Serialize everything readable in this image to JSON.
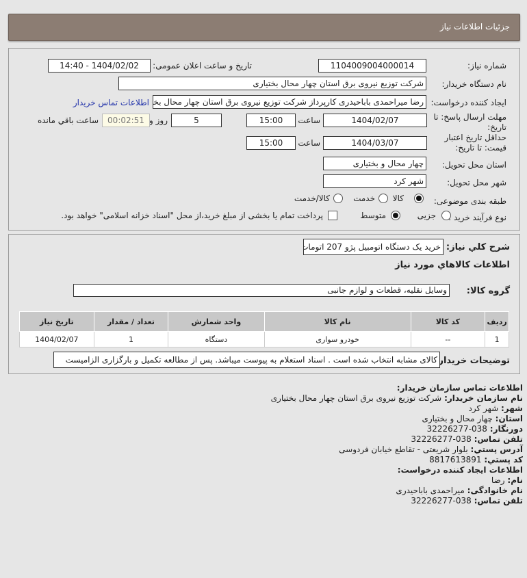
{
  "header": {
    "title": "جزئیات اطلاعات نیاز"
  },
  "form": {
    "need_number_label": "شماره نیاز:",
    "need_number": "1104009004000014",
    "announce_label": "تاریخ و ساعت اعلان عمومی:",
    "announce_value": "1404/02/02 - 14:40",
    "buyer_org_label": "نام دستگاه خریدار:",
    "buyer_org": "شرکت توزیع نیروی برق استان چهار محال بختیاری",
    "creator_label": "ایجاد کننده درخواست:",
    "creator": "رضا میراحمدی باباحیدری کارپرداز شرکت توزیع نیروی برق استان چهار محال بختیاری",
    "contact_link": "اطلاعات تماس خریدار",
    "deadline_label": "مهلت ارسال پاسخ: تا تاریخ:",
    "deadline_date": "1404/02/07",
    "time_label": "ساعت",
    "deadline_time": "15:00",
    "days": "5",
    "days_label": "روز و",
    "remaining": "00:02:51",
    "remaining_label": "ساعت باقي مانده",
    "validity_label": "حداقل تاریخ اعتبار قیمت: تا تاریخ:",
    "validity_date": "1404/03/07",
    "validity_time": "15:00",
    "province_label": "استان محل تحویل:",
    "province": "چهار محال و بختیاری",
    "city_label": "شهر محل تحویل:",
    "city": "شهر کرد",
    "category_label": "طبقه بندی موضوعی:",
    "category_options": [
      "کالا",
      "خدمت",
      "کالا/خدمت"
    ],
    "category_selected": "کالا",
    "process_label": "نوع فرآیند خرید :",
    "process_options": [
      "جزیی",
      "متوسط"
    ],
    "process_selected": "متوسط",
    "payment_text": "پرداخت تمام یا بخشی از مبلغ خرید،از محل \"اسناد خزانه اسلامی\" خواهد بود.",
    "payment_checked": false
  },
  "goods": {
    "summary_label": "شرح كلي نياز:",
    "summary": "خرید یک دستگاه اتومبیل پژو 207 اتومات",
    "section_title": "اطلاعات كالاهاي مورد نياز",
    "group_label": "گروه کالا:",
    "group": "وسایل نقلیه، قطعات و لوازم جانبی",
    "columns": [
      "ردیف",
      "کد کالا",
      "نام کالا",
      "واحد شمارش",
      "تعداد / مقدار",
      "تاریخ نیاز"
    ],
    "rows": [
      [
        "1",
        "--",
        "خودرو سواری",
        "دستگاه",
        "1",
        "1404/02/07"
      ]
    ],
    "notes_label": "توضیحات خریدار:",
    "notes": "کالای مشابه انتخاب شده است . اسناد استعلام به پیوست میباشد. پس از مطالعه تکمیل و بارگزاری الزامیست"
  },
  "contact": {
    "title": "اطلاعات تماس سازمان خریدار:",
    "org_label": "نام سازمان خریدار:",
    "org": "شرکت توزیع نیروی برق استان چهار محال بختیاری",
    "city_label": "شهر:",
    "city": "شهر کرد",
    "province_label": "استان:",
    "province": "چهار محال و بختیاری",
    "fax_label": "دورنگار:",
    "fax": "038-32226277",
    "phone_label": "تلفن تماس:",
    "phone": "038-32226277",
    "address_label": "آدرس پستي:",
    "address": "بلوار شریعتی - تقاطع خیابان فردوسی",
    "postal_label": "کد پستي:",
    "postal": "8817613891",
    "creator_title": "اطلاعات ایجاد کننده درخواست:",
    "name_label": "نام:",
    "name": "رضا",
    "family_label": "نام خانوادگی:",
    "family": "میراحمدی باباحیدری",
    "creator_phone_label": "تلفن تماس:",
    "creator_phone": "038-32226277"
  }
}
